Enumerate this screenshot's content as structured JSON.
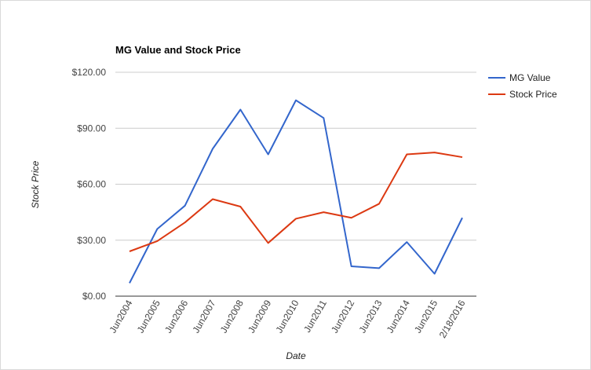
{
  "chart_data": {
    "type": "line",
    "title": "MG Value and Stock Price",
    "xlabel": "Date",
    "ylabel": "Stock Price",
    "categories": [
      "Jun2004",
      "Jun2005",
      "Jun2006",
      "Jun2007",
      "Jun2008",
      "Jun2009",
      "Jun2010",
      "Jun2011",
      "Jun2012",
      "Jun2013",
      "Jun2014",
      "Jun2015",
      "2/18/2016"
    ],
    "ylim": [
      0,
      120
    ],
    "yticks": [
      0,
      30,
      60,
      90,
      120
    ],
    "ytick_labels": [
      "$0.00",
      "$30.00",
      "$60.00",
      "$90.00",
      "$120.00"
    ],
    "grid": true,
    "legend_position": "right",
    "series": [
      {
        "name": "MG Value",
        "color": "#3366cc",
        "values": [
          7,
          36,
          48.5,
          79,
          100,
          76,
          105,
          95.5,
          16,
          15,
          29,
          12,
          42
        ]
      },
      {
        "name": "Stock Price",
        "color": "#dc3912",
        "values": [
          24,
          29.5,
          39.5,
          52,
          48,
          28.5,
          41.5,
          45,
          42,
          49.5,
          76,
          77,
          74.5
        ]
      }
    ]
  }
}
